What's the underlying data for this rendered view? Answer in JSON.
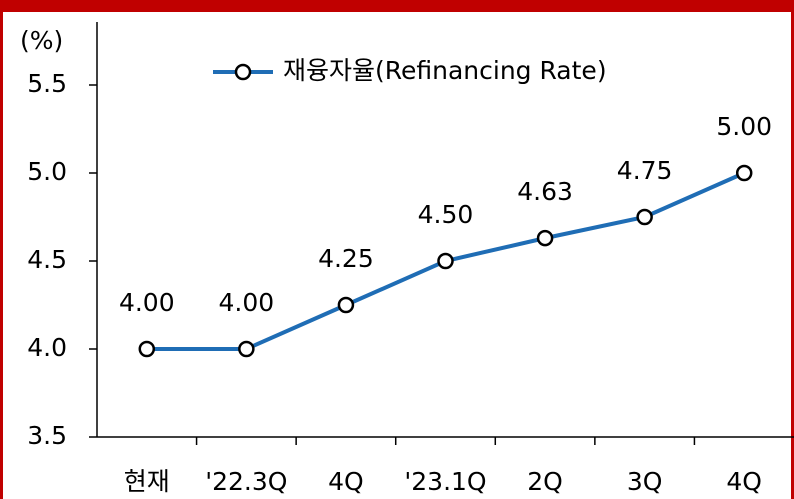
{
  "chart_data": {
    "type": "line",
    "y_axis_label": "(%)",
    "categories": [
      "현재",
      "'22.3Q",
      "4Q",
      "'23.1Q",
      "2Q",
      "3Q",
      "4Q"
    ],
    "series": [
      {
        "name": "재융자율(Refinancing Rate)",
        "color": "#1f6db5",
        "values": [
          4.0,
          4.0,
          4.25,
          4.5,
          4.63,
          4.75,
          5.0
        ],
        "value_labels": [
          "4.00",
          "4.00",
          "4.25",
          "4.50",
          "4.63",
          "4.75",
          "5.00"
        ]
      }
    ],
    "ylim": [
      3.5,
      5.5
    ],
    "yticks": [
      3.5,
      {
        "value": 4.0,
        "label": "4.0"
      },
      4.5,
      {
        "value": 5.0,
        "label": "5.0"
      },
      5.5
    ],
    "grid": false
  }
}
